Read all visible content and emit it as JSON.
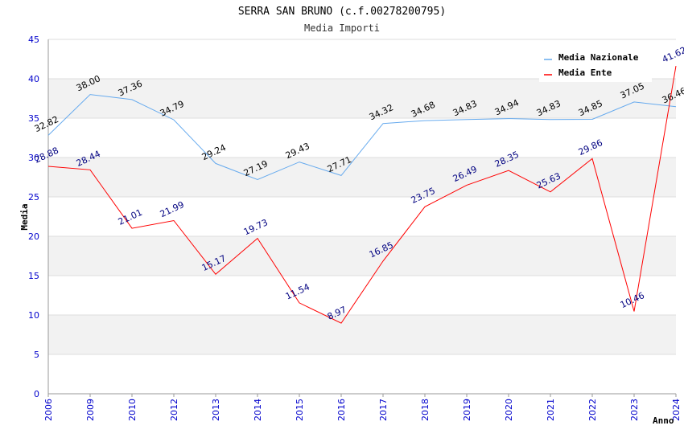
{
  "chart_data": {
    "type": "line",
    "title": "SERRA SAN BRUNO (c.f.00278200795)",
    "subtitle": "Media Importi",
    "xlabel": "Anno",
    "ylabel": "Media",
    "ylim": [
      0,
      45
    ],
    "yticks": [
      "0",
      "5",
      "10",
      "15",
      "20",
      "25",
      "30",
      "35",
      "40",
      "45"
    ],
    "categories": [
      "2006",
      "2009",
      "2010",
      "2012",
      "2013",
      "2014",
      "2015",
      "2016",
      "2017",
      "2018",
      "2019",
      "2020",
      "2021",
      "2022",
      "2023",
      "2024"
    ],
    "legend_position": "top-right",
    "series": [
      {
        "name": "Media Nazionale",
        "color": "#66aaee",
        "label_color": "#000000",
        "values": [
          32.82,
          38.0,
          37.36,
          34.79,
          29.24,
          27.19,
          29.43,
          27.71,
          34.32,
          34.68,
          34.83,
          34.94,
          34.83,
          34.85,
          37.05,
          36.46
        ],
        "labels": [
          "32.82",
          "38.00",
          "37.36",
          "34.79",
          "29.24",
          "27.19",
          "29.43",
          "27.71",
          "34.32",
          "34.68",
          "34.83",
          "34.94",
          "34.83",
          "34.85",
          "37.05",
          "36.46"
        ]
      },
      {
        "name": "Media Ente",
        "color": "#ff0000",
        "label_color": "#000080",
        "values": [
          28.88,
          28.44,
          21.01,
          21.99,
          15.17,
          19.73,
          11.54,
          8.97,
          16.85,
          23.75,
          26.49,
          28.35,
          25.63,
          29.86,
          10.46,
          41.62
        ],
        "labels": [
          "28.88",
          "28.44",
          "21.01",
          "21.99",
          "15.17",
          "19.73",
          "11.54",
          "8.97",
          "16.85",
          "23.75",
          "26.49",
          "28.35",
          "25.63",
          "29.86",
          "10.46",
          "41.62"
        ]
      }
    ],
    "colors": {
      "band": "#f2f2f2",
      "grid": "#dddddd",
      "axis": "#999999"
    }
  }
}
